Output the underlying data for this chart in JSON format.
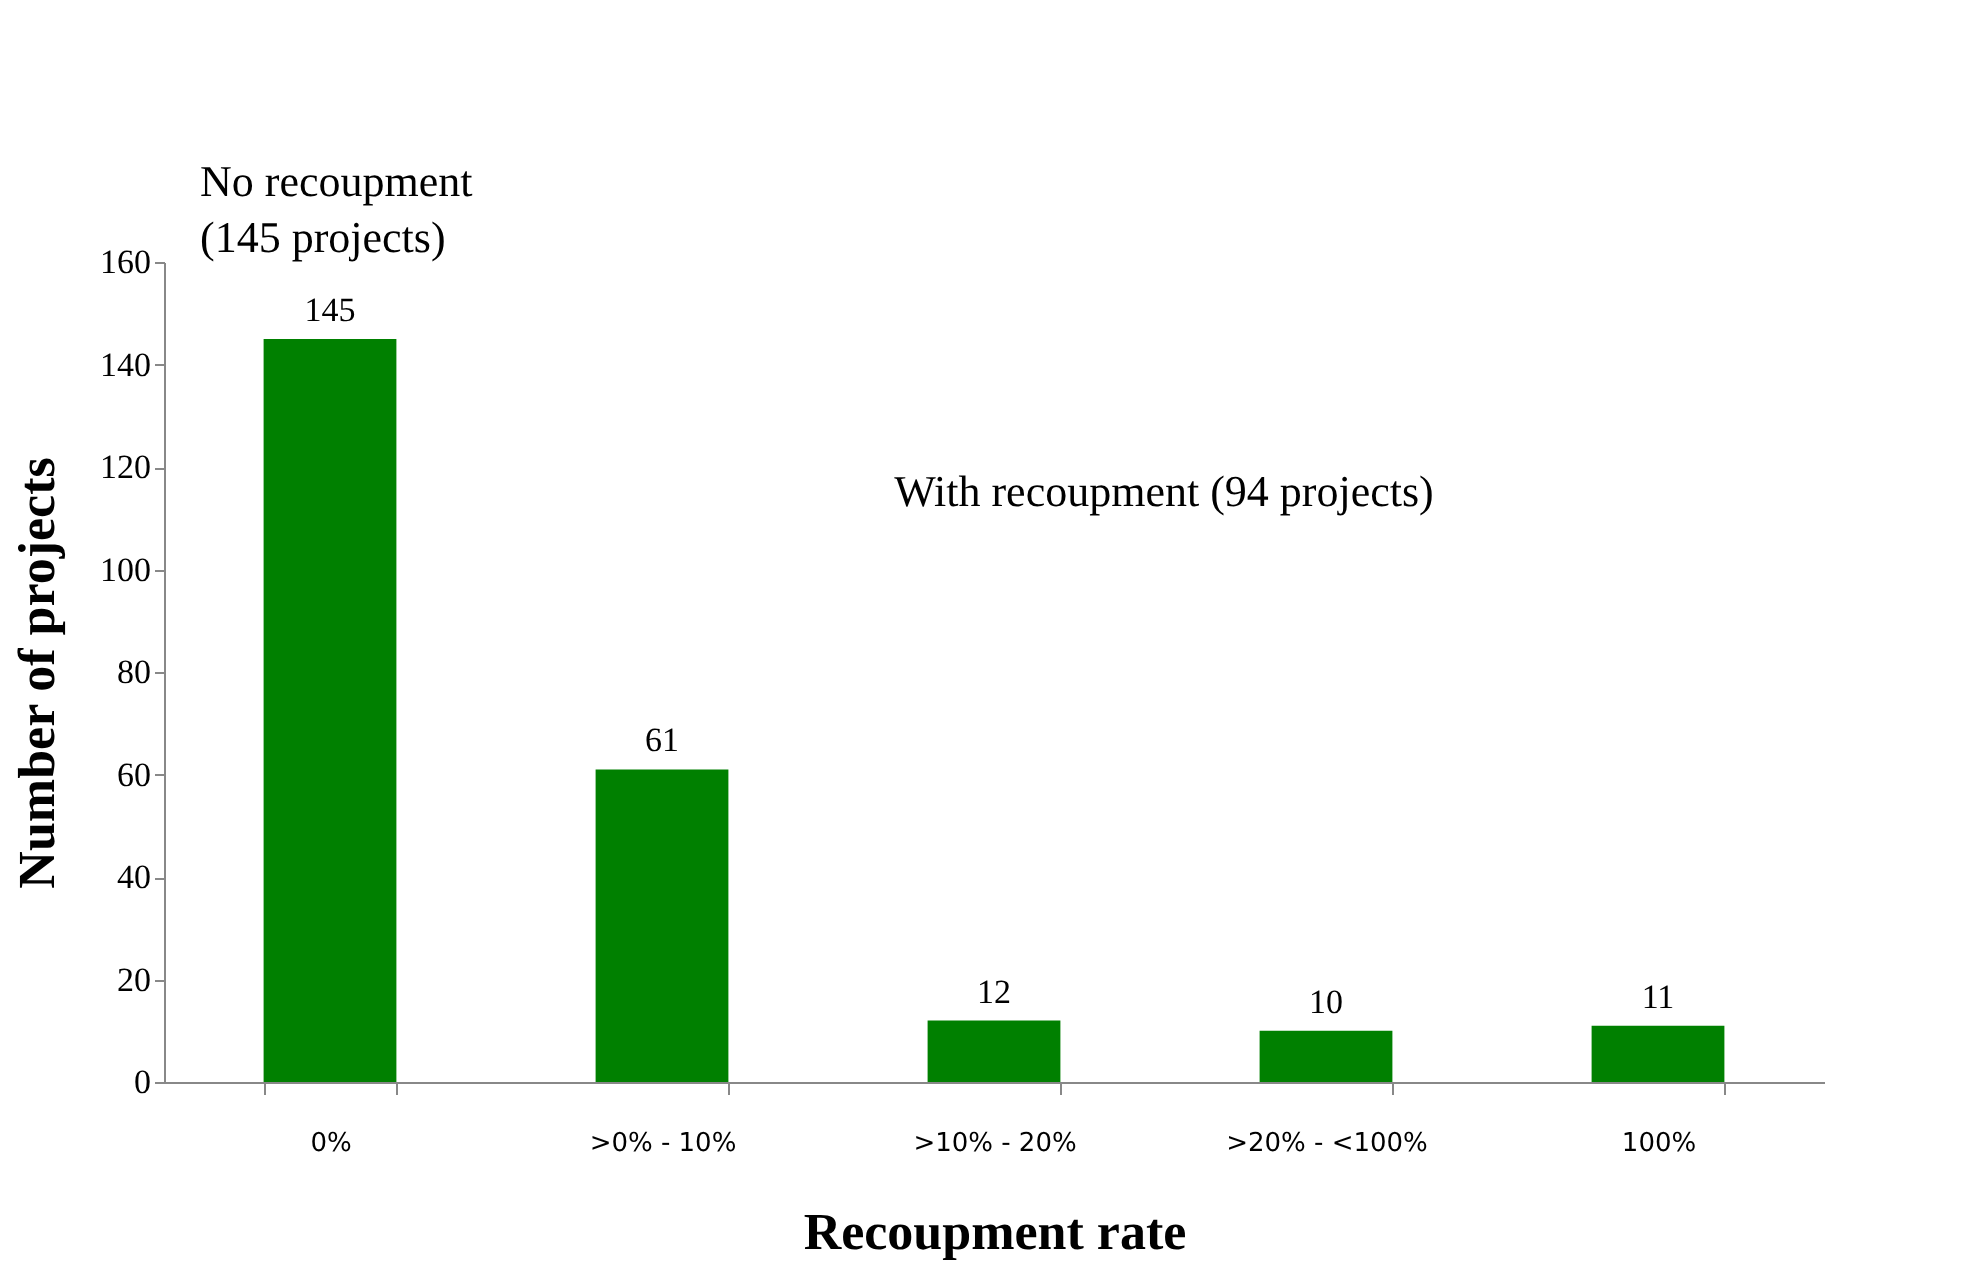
{
  "chart_data": {
    "type": "bar",
    "categories": [
      "0%",
      ">0% - 10%",
      ">10% - 20%",
      ">20% - <100%",
      "100%"
    ],
    "values": [
      145,
      61,
      12,
      10,
      11
    ],
    "color": "#008000",
    "ylim": [
      0,
      160
    ],
    "yticks": [
      0,
      20,
      40,
      60,
      80,
      100,
      120,
      140,
      160
    ],
    "grid": false,
    "data_labels": true,
    "xlabel": "Recoupment rate",
    "ylabel": "Number of projects",
    "annotations": [
      "No recoupment\n(145 projects)",
      "With recoupment (94 projects)"
    ]
  }
}
